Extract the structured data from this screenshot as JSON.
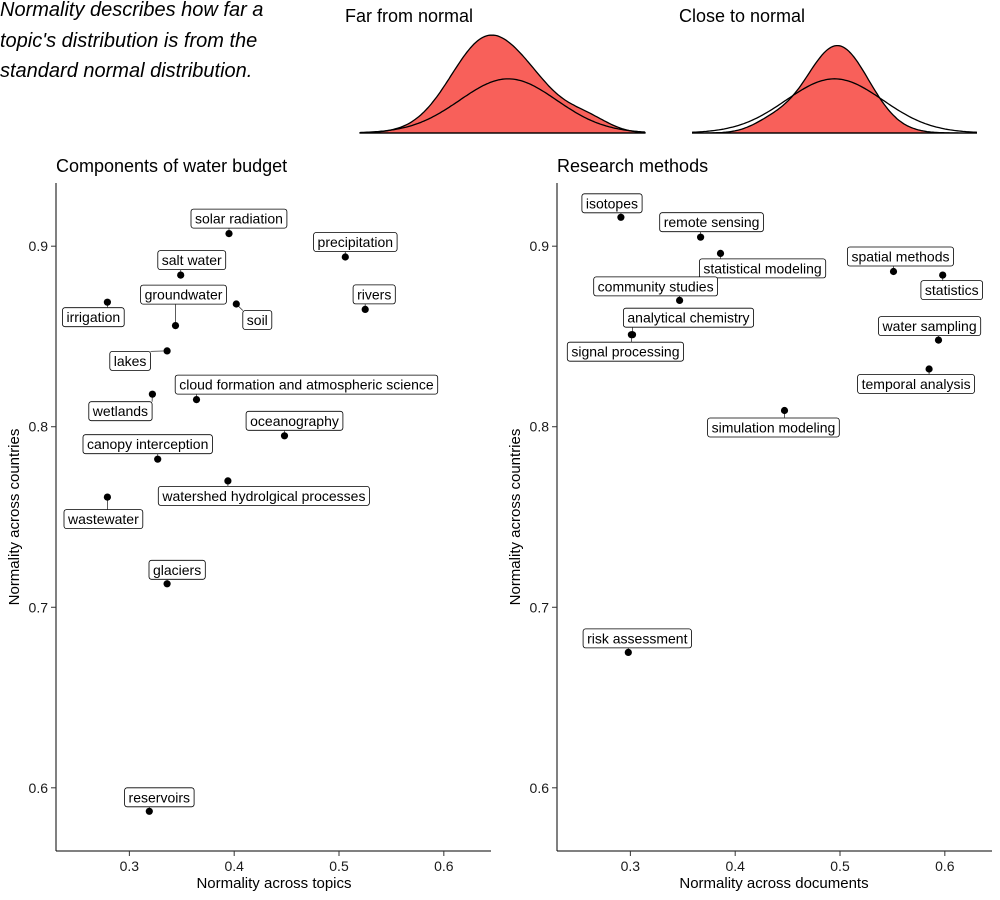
{
  "intro_note": {
    "lines": [
      "Normality describes how far a",
      "topic's distribution is from the",
      "standard normal distribution."
    ]
  },
  "density_examples": [
    {
      "title": "Far from normal",
      "fill_color": "#f8605a",
      "bumps": [
        [
          0.45,
          0.13,
          1.0
        ],
        [
          0.63,
          0.09,
          0.2
        ],
        [
          0.79,
          0.08,
          0.16
        ]
      ],
      "normal": [
        0.52,
        0.17
      ]
    },
    {
      "title": "Close to normal",
      "fill_color": "#f8605a",
      "bumps": [
        [
          0.51,
          0.11,
          0.92
        ],
        [
          0.28,
          0.07,
          0.1
        ]
      ],
      "normal": [
        0.5,
        0.17
      ]
    }
  ],
  "chart_data": [
    {
      "type": "scatter",
      "title": "Components of water budget",
      "xlabel": "Normality across topics",
      "ylabel": "Normality across countries",
      "xlim": [
        0.23,
        0.645
      ],
      "ylim": [
        0.565,
        0.935
      ],
      "xticks": [
        0.3,
        0.4,
        0.5,
        0.6
      ],
      "yticks": [
        0.6,
        0.7,
        0.8,
        0.9
      ],
      "grid": false,
      "points": [
        {
          "label": "solar radiation",
          "x": 0.395,
          "y": 0.907,
          "dx": 10,
          "dy": -15
        },
        {
          "label": "precipitation",
          "x": 0.506,
          "y": 0.894,
          "dx": 10,
          "dy": -15
        },
        {
          "label": "salt water",
          "x": 0.349,
          "y": 0.884,
          "dx": 11,
          "dy": -15
        },
        {
          "label": "irrigation",
          "x": 0.279,
          "y": 0.869,
          "dx": -14,
          "dy": 15
        },
        {
          "label": "groundwater",
          "x": 0.344,
          "y": 0.856,
          "dx": 8,
          "dy": -31
        },
        {
          "label": "soil",
          "x": 0.402,
          "y": 0.868,
          "dx": 21,
          "dy": 16
        },
        {
          "label": "rivers",
          "x": 0.525,
          "y": 0.865,
          "dx": 9,
          "dy": -15
        },
        {
          "label": "lakes",
          "x": 0.336,
          "y": 0.842,
          "dx": -37,
          "dy": 10
        },
        {
          "label": "cloud formation and atmospheric science",
          "x": 0.364,
          "y": 0.815,
          "dx": 110,
          "dy": -15
        },
        {
          "label": "wetlands",
          "x": 0.322,
          "y": 0.818,
          "dx": -32,
          "dy": 17
        },
        {
          "label": "oceanography",
          "x": 0.448,
          "y": 0.795,
          "dx": 10,
          "dy": -15
        },
        {
          "label": "canopy interception",
          "x": 0.327,
          "y": 0.782,
          "dx": -10,
          "dy": -15
        },
        {
          "label": "watershed hydrolgical processes",
          "x": 0.394,
          "y": 0.77,
          "dx": 36,
          "dy": 15
        },
        {
          "label": "wastewater",
          "x": 0.279,
          "y": 0.761,
          "dx": -4,
          "dy": 22
        },
        {
          "label": "glaciers",
          "x": 0.336,
          "y": 0.713,
          "dx": 10,
          "dy": -14
        },
        {
          "label": "reservoirs",
          "x": 0.319,
          "y": 0.587,
          "dx": 10,
          "dy": -14
        }
      ]
    },
    {
      "type": "scatter",
      "title": "Research methods",
      "xlabel": "Normality across documents",
      "ylabel": "Normality across countries",
      "xlim": [
        0.23,
        0.645
      ],
      "ylim": [
        0.565,
        0.935
      ],
      "xticks": [
        0.3,
        0.4,
        0.5,
        0.6
      ],
      "yticks": [
        0.6,
        0.7,
        0.8,
        0.9
      ],
      "grid": false,
      "points": [
        {
          "label": "isotopes",
          "x": 0.291,
          "y": 0.916,
          "dx": -9,
          "dy": -14
        },
        {
          "label": "remote sensing",
          "x": 0.367,
          "y": 0.905,
          "dx": 11,
          "dy": -15
        },
        {
          "label": "statistical modeling",
          "x": 0.386,
          "y": 0.896,
          "dx": 42,
          "dy": 15
        },
        {
          "label": "spatial methods",
          "x": 0.551,
          "y": 0.886,
          "dx": 7,
          "dy": -15
        },
        {
          "label": "statistics",
          "x": 0.598,
          "y": 0.884,
          "dx": 9,
          "dy": 15
        },
        {
          "label": "community studies",
          "x": 0.347,
          "y": 0.87,
          "dx": -24,
          "dy": -14
        },
        {
          "label": "analytical chemistry",
          "x": 0.302,
          "y": 0.851,
          "dx": 56,
          "dy": -17
        },
        {
          "label": "signal processing",
          "x": 0.301,
          "y": 0.851,
          "dx": -6,
          "dy": 17
        },
        {
          "label": "water sampling",
          "x": 0.594,
          "y": 0.848,
          "dx": -9,
          "dy": -14
        },
        {
          "label": "temporal analysis",
          "x": 0.585,
          "y": 0.832,
          "dx": -13,
          "dy": 15
        },
        {
          "label": "simulation modeling",
          "x": 0.447,
          "y": 0.809,
          "dx": -11,
          "dy": 17
        },
        {
          "label": "risk assessment",
          "x": 0.298,
          "y": 0.675,
          "dx": 9,
          "dy": -14
        }
      ]
    }
  ]
}
